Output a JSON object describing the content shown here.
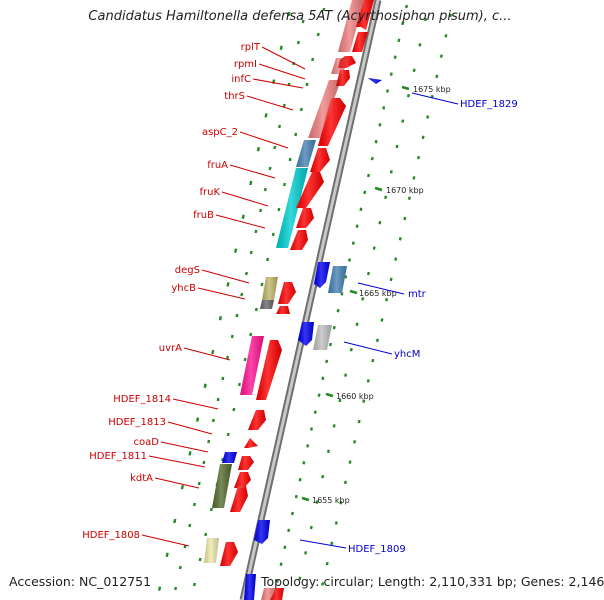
{
  "title": "Candidatus Hamiltonella defensa 5AT (Acyrthosiphon pisum), c...",
  "footer": {
    "accession": "Accession: NC_012751",
    "topology": "Topology: circular; Length: 2,110,331 bp; Genes: 2,146"
  },
  "colors": {
    "backbone": "#999999",
    "tick": "#228b22",
    "gene_forward": "#ff0000",
    "gene_reverse": "#0000ee",
    "label_forward": "#cc0000",
    "label_reverse": "#0000cc"
  },
  "scale": {
    "unit": "kbp",
    "labels": [
      "1675 kbp",
      "1670 kbp",
      "1665 kbp",
      "1660 kbp",
      "1655 kbp"
    ]
  },
  "genes_left": [
    {
      "name": "rplT",
      "color": "#ff0000"
    },
    {
      "name": "rpmI",
      "color": "#ff0000"
    },
    {
      "name": "infC",
      "color": "#ff0000"
    },
    {
      "name": "thrS",
      "color": "#ff0000"
    },
    {
      "name": "aspC_2",
      "color": "#ff0000"
    },
    {
      "name": "fruA",
      "color": "#ff0000"
    },
    {
      "name": "fruK",
      "color": "#ff0000"
    },
    {
      "name": "fruB",
      "color": "#ff0000"
    },
    {
      "name": "degS",
      "color": "#ff0000"
    },
    {
      "name": "yhcB",
      "color": "#ff0000"
    },
    {
      "name": "uvrA",
      "color": "#ff0000"
    },
    {
      "name": "HDEF_1814",
      "color": "#ff0000"
    },
    {
      "name": "HDEF_1813",
      "color": "#ff0000"
    },
    {
      "name": "coaD",
      "color": "#ff0000"
    },
    {
      "name": "HDEF_1811",
      "color": "#ff0000"
    },
    {
      "name": "kdtA",
      "color": "#ff0000"
    },
    {
      "name": "HDEF_1808",
      "color": "#ff0000"
    }
  ],
  "genes_right": [
    {
      "name": "HDEF_1829",
      "color": "#0000ee"
    },
    {
      "name": "mtr",
      "color": "#0000ee"
    },
    {
      "name": "yhcM",
      "color": "#0000ee"
    },
    {
      "name": "HDEF_1809",
      "color": "#0000ee"
    }
  ],
  "cog_colors": [
    "#f08080",
    "#4682b4",
    "#00ced1",
    "#bdb76b",
    "#ff1493",
    "#556b2f",
    "#eee8aa",
    "#c0c0c0",
    "#696969"
  ]
}
